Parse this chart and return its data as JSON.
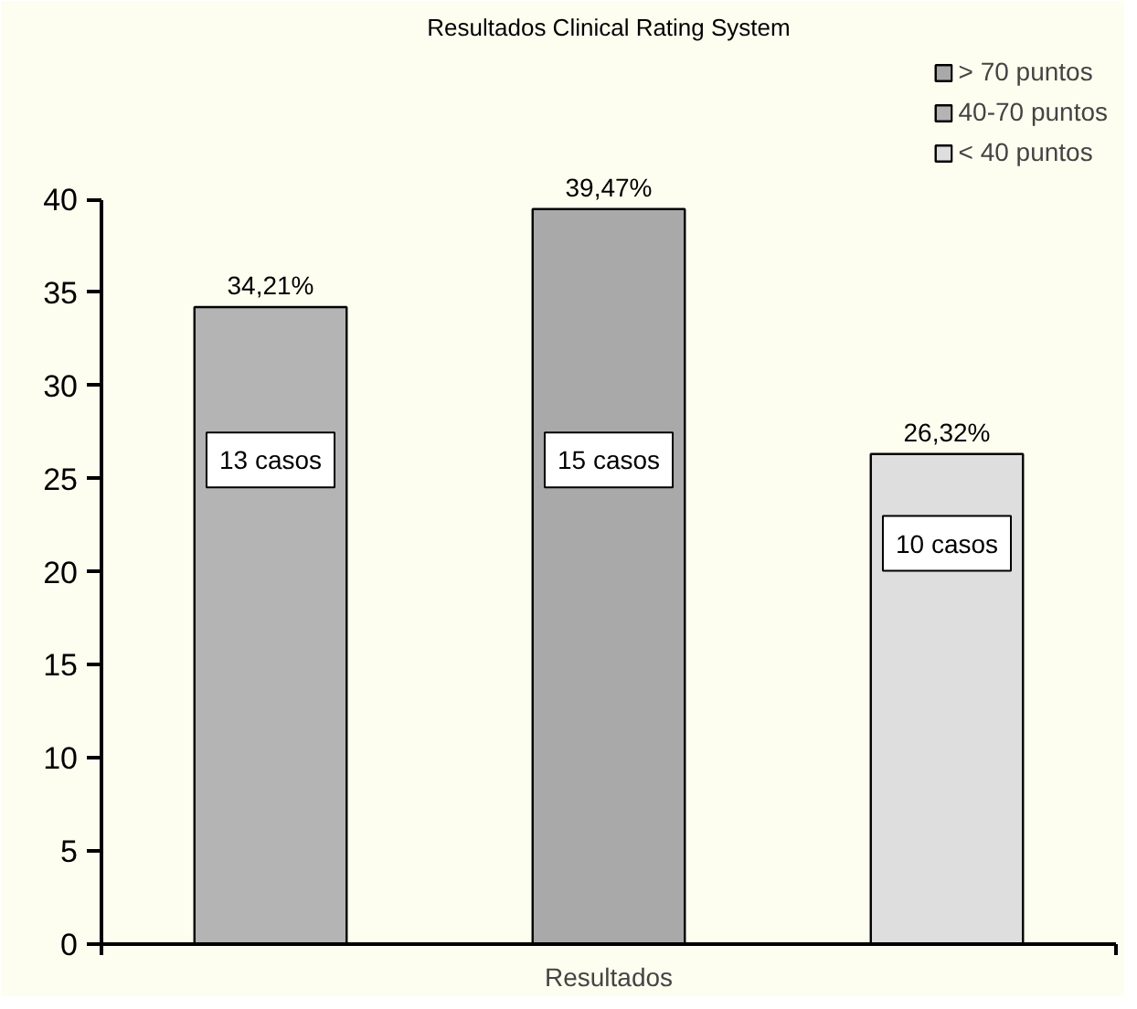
{
  "chart_data": {
    "type": "bar",
    "title": "Resultados Clinical Rating System",
    "xlabel": "Resultados",
    "categories": [
      null,
      null,
      null
    ],
    "series": [
      {
        "name": "> 70 puntos",
        "color": "#a9a9a9",
        "values": [
          null,
          39.47,
          null
        ],
        "value_labels": [
          null,
          "39,47%",
          null
        ]
      },
      {
        "name": "40-70 puntos",
        "color": "#b4b4b4",
        "values": [
          34.21,
          null,
          null
        ],
        "value_labels": [
          "34,21%",
          null,
          null
        ]
      },
      {
        "name": "< 40 puntos",
        "color": "#dedede",
        "values": [
          null,
          null,
          26.32
        ],
        "value_labels": [
          null,
          null,
          "26,32%"
        ]
      }
    ],
    "annotations": [
      "13 casos",
      "15 casos",
      "10 casos"
    ],
    "ylim": [
      0,
      40
    ],
    "yticks": [
      0,
      5,
      10,
      15,
      20,
      25,
      30,
      35,
      40
    ],
    "grid": false,
    "legend": "top right",
    "tick_labels": "y"
  }
}
